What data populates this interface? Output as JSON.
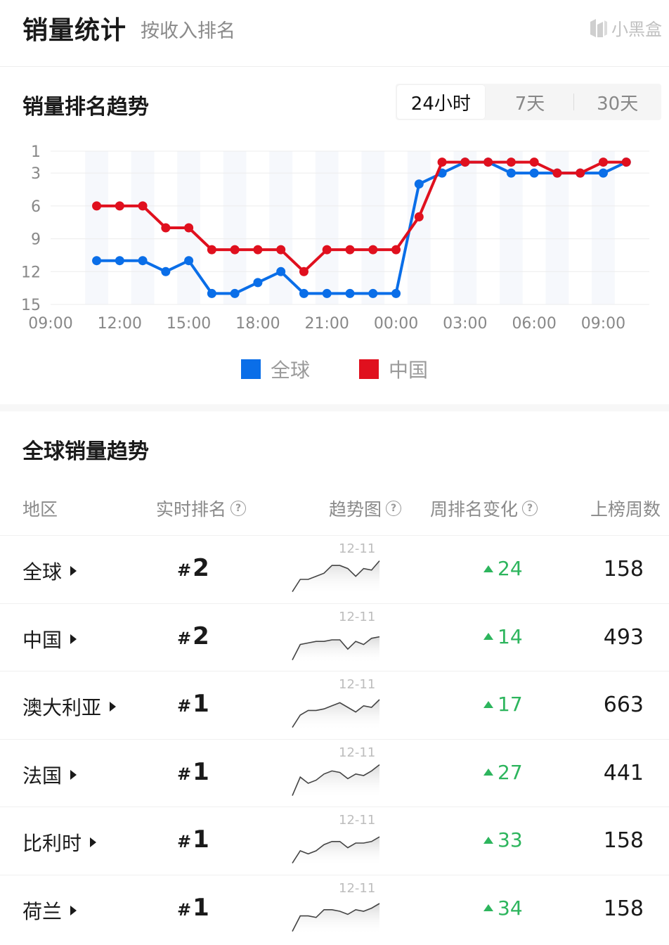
{
  "header": {
    "title": "销量统计",
    "subtitle": "按收入排名",
    "brand": "小黑盒"
  },
  "rank_section": {
    "title": "销量排名趋势",
    "tabs": [
      {
        "label": "24小时",
        "active": true
      },
      {
        "label": "7天",
        "active": false
      },
      {
        "label": "30天",
        "active": false
      }
    ]
  },
  "chart_data": {
    "type": "line",
    "y_inverted": true,
    "ylim": [
      1,
      15
    ],
    "y_ticks": [
      1,
      3,
      6,
      9,
      12,
      15
    ],
    "x_ticks": [
      "09:00",
      "12:00",
      "15:00",
      "18:00",
      "21:00",
      "00:00",
      "03:00",
      "06:00",
      "09:00"
    ],
    "x_hours": [
      11,
      12,
      13,
      14,
      15,
      16,
      17,
      18,
      19,
      20,
      21,
      22,
      23,
      24,
      25,
      26,
      27,
      28,
      29,
      30,
      31,
      32,
      33,
      34
    ],
    "series": [
      {
        "name": "全球",
        "color": "#0a6ee8",
        "values": [
          11,
          11,
          11,
          12,
          11,
          14,
          14,
          13,
          12,
          14,
          14,
          14,
          14,
          14,
          4,
          3,
          2,
          2,
          3,
          3,
          3,
          3,
          3,
          2
        ]
      },
      {
        "name": "中国",
        "color": "#e0101e",
        "values": [
          6,
          6,
          6,
          8,
          8,
          10,
          10,
          10,
          10,
          12,
          10,
          10,
          10,
          10,
          7,
          2,
          2,
          2,
          2,
          2,
          3,
          3,
          2,
          2
        ]
      }
    ],
    "grid": true,
    "legend_position": "bottom"
  },
  "global_section": {
    "title": "全球销量趋势",
    "columns": [
      "地区",
      "实时排名",
      "趋势图",
      "周排名变化",
      "上榜周数"
    ],
    "rows": [
      {
        "region": "全球",
        "rank_hash": "#",
        "rank": "2",
        "spark_date": "12-11",
        "change": "24",
        "weeks": "158",
        "spark": [
          2,
          10,
          10,
          12,
          14,
          19,
          19,
          17,
          12,
          17,
          16,
          22
        ]
      },
      {
        "region": "中国",
        "rank_hash": "#",
        "rank": "2",
        "spark_date": "12-11",
        "change": "14",
        "weeks": "493",
        "spark": [
          2,
          12,
          13,
          14,
          14,
          15,
          15,
          9,
          14,
          12,
          16,
          17
        ]
      },
      {
        "region": "澳大利亚",
        "rank_hash": "#",
        "rank": "1",
        "spark_date": "12-11",
        "change": "17",
        "weeks": "663",
        "spark": [
          2,
          10,
          13,
          13,
          14,
          16,
          18,
          15,
          12,
          16,
          15,
          20
        ]
      },
      {
        "region": "法国",
        "rank_hash": "#",
        "rank": "1",
        "spark_date": "12-11",
        "change": "27",
        "weeks": "441",
        "spark": [
          2,
          14,
          10,
          12,
          16,
          18,
          17,
          13,
          16,
          15,
          18,
          22
        ]
      },
      {
        "region": "比利时",
        "rank_hash": "#",
        "rank": "1",
        "spark_date": "12-11",
        "change": "33",
        "weeks": "158",
        "spark": [
          2,
          10,
          8,
          10,
          14,
          16,
          16,
          12,
          15,
          15,
          16,
          19
        ]
      },
      {
        "region": "荷兰",
        "rank_hash": "#",
        "rank": "1",
        "spark_date": "12-11",
        "change": "34",
        "weeks": "158",
        "spark": [
          2,
          12,
          12,
          11,
          16,
          16,
          15,
          13,
          16,
          15,
          17,
          20
        ]
      }
    ]
  }
}
